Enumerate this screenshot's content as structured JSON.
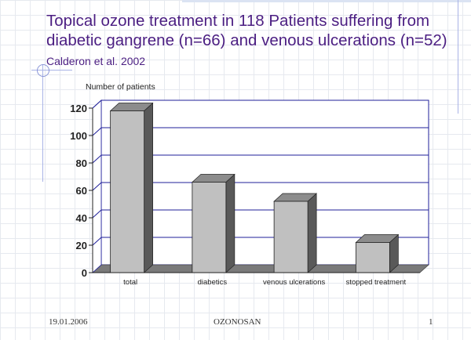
{
  "slide": {
    "title_main": "Topical ozone treatment in 118 Patients suffering from diabetic gangrene (n=66) and venous ulcerations (n=52)",
    "title_ref": "Calderon et al. 2002"
  },
  "footer": {
    "date": "19.01.2006",
    "center": "OZONOSAN",
    "page": "1"
  },
  "colors": {
    "title": "#4b1e82",
    "bar_front": "#c0c0c0",
    "bar_side": "#595959",
    "bar_top": "#8c8c8c",
    "grid": "#1f1f99"
  },
  "chart_data": {
    "type": "bar",
    "ylabel": "Number of patients",
    "xlabel": "",
    "categories": [
      "total",
      "diabetics",
      "venous ulcerations",
      "stopped treatment"
    ],
    "values": [
      118,
      66,
      52,
      22
    ],
    "ylim": [
      0,
      120
    ],
    "yticks": [
      0,
      20,
      40,
      60,
      80,
      100,
      120
    ],
    "grid": true,
    "style": "3d"
  }
}
